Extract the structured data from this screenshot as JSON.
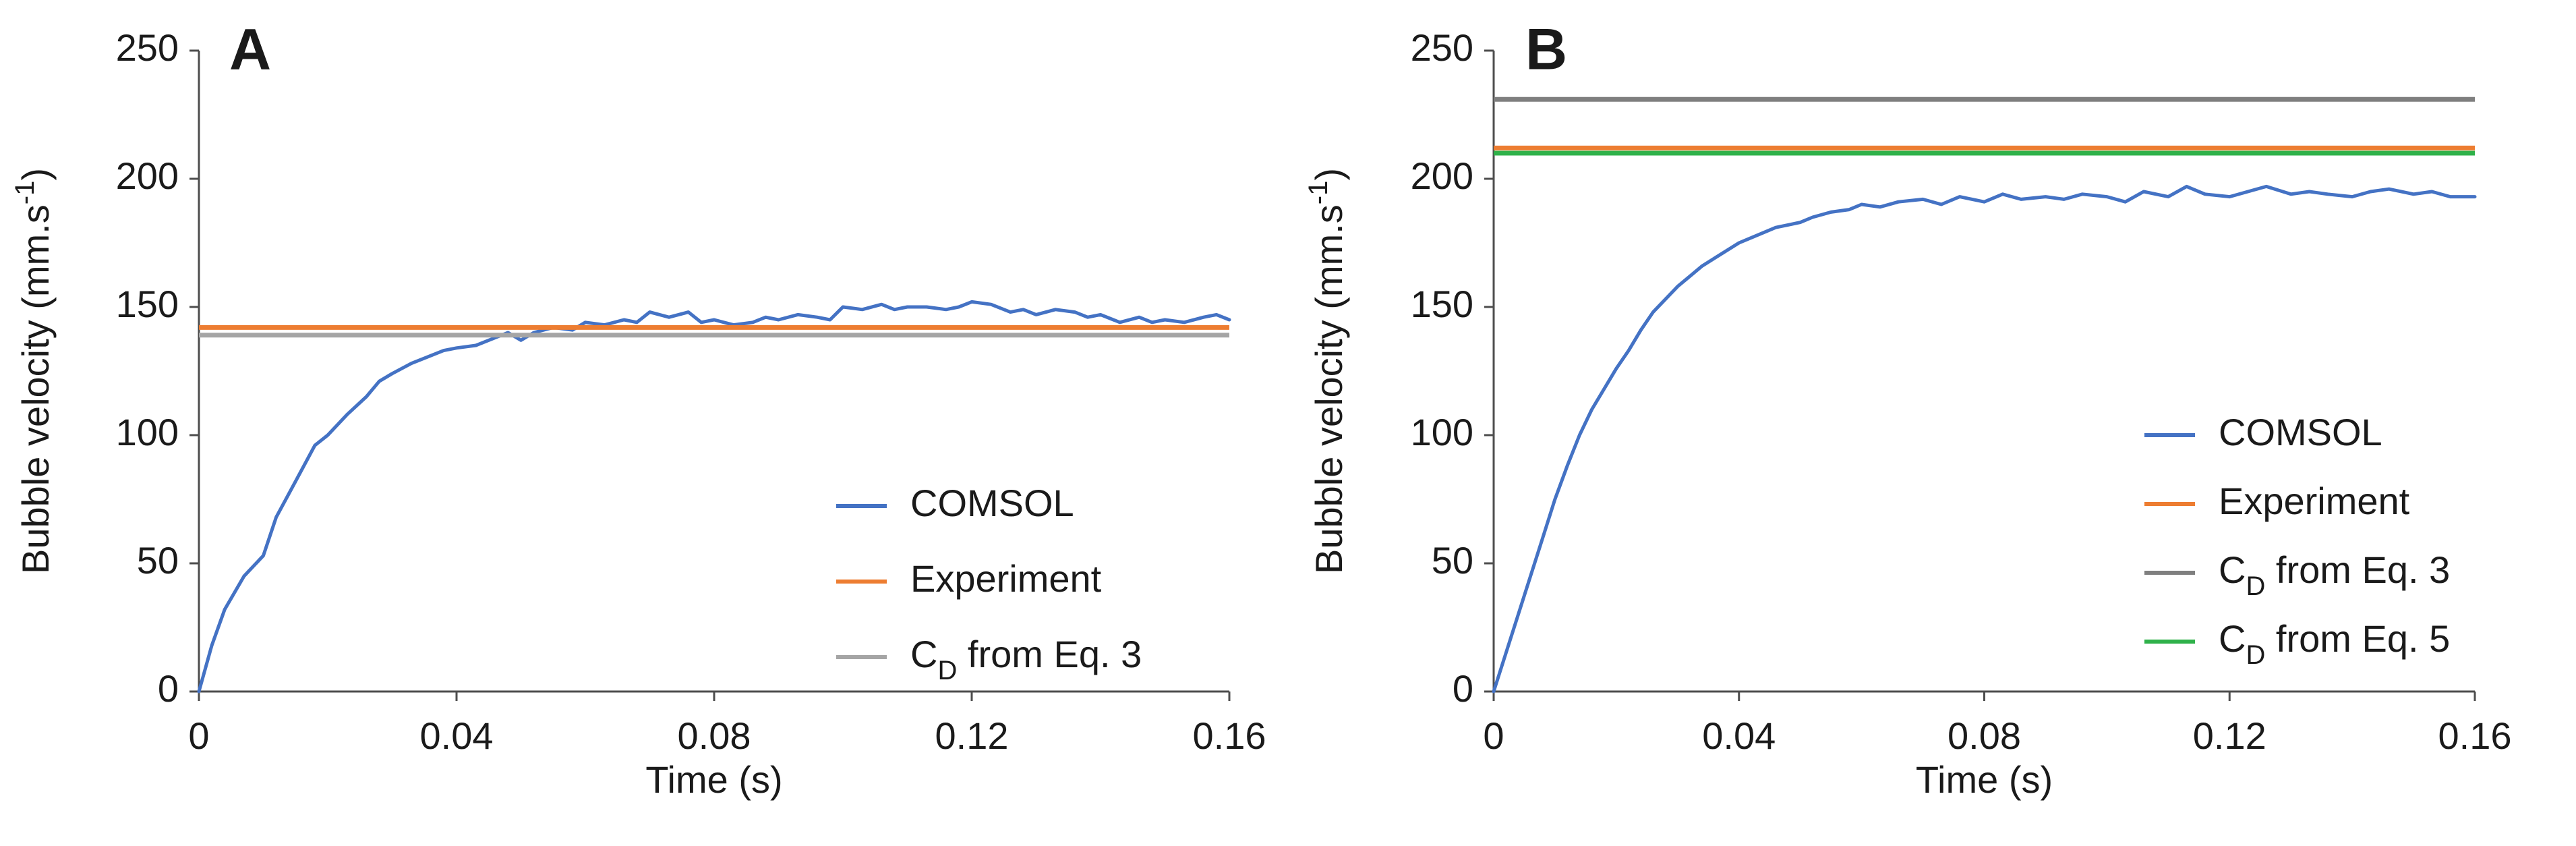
{
  "chart_data": [
    {
      "panel_label": "A",
      "type": "line",
      "xlabel": "Time (s)",
      "ylabel": "Bubble velocity (mm.s",
      "ylabel_sup": "-1",
      "ylabel_close": ")",
      "xlim": [
        0,
        0.16
      ],
      "ylim": [
        0,
        250
      ],
      "x_ticks": [
        0,
        0.04,
        0.08,
        0.12,
        0.16
      ],
      "x_tick_labels": [
        "0",
        "0.04",
        "0.08",
        "0.12",
        "0.16"
      ],
      "y_ticks": [
        0,
        50,
        100,
        150,
        200,
        250
      ],
      "y_tick_labels": [
        "0",
        "50",
        "100",
        "150",
        "200",
        "250"
      ],
      "legend_position": "bottom-right",
      "series": [
        {
          "name": "COMSOL",
          "color": "#4472C4",
          "kind": "curve",
          "x": [
            0,
            0.002,
            0.004,
            0.007,
            0.01,
            0.012,
            0.015,
            0.018,
            0.02,
            0.023,
            0.026,
            0.028,
            0.03,
            0.033,
            0.036,
            0.038,
            0.04,
            0.043,
            0.046,
            0.048,
            0.05,
            0.052,
            0.055,
            0.058,
            0.06,
            0.063,
            0.066,
            0.068,
            0.07,
            0.073,
            0.076,
            0.078,
            0.08,
            0.083,
            0.086,
            0.088,
            0.09,
            0.093,
            0.096,
            0.098,
            0.1,
            0.103,
            0.106,
            0.108,
            0.11,
            0.113,
            0.116,
            0.118,
            0.12,
            0.123,
            0.126,
            0.128,
            0.13,
            0.133,
            0.136,
            0.138,
            0.14,
            0.143,
            0.146,
            0.148,
            0.15,
            0.153,
            0.156,
            0.158,
            0.16
          ],
          "y": [
            0,
            18,
            32,
            45,
            53,
            68,
            82,
            96,
            100,
            108,
            115,
            121,
            124,
            128,
            131,
            133,
            134,
            135,
            138,
            140,
            137,
            140,
            142,
            141,
            144,
            143,
            145,
            144,
            148,
            146,
            148,
            144,
            145,
            143,
            144,
            146,
            145,
            147,
            146,
            145,
            150,
            149,
            151,
            149,
            150,
            150,
            149,
            150,
            152,
            151,
            148,
            149,
            147,
            149,
            148,
            146,
            147,
            144,
            146,
            144,
            145,
            144,
            146,
            147,
            145
          ]
        },
        {
          "name": "Experiment",
          "color": "#ED7D31",
          "kind": "constant",
          "value": 142
        },
        {
          "name": "C",
          "name_sub": "D",
          "name_rest": " from Eq. 3",
          "color": "#A5A5A5",
          "kind": "constant",
          "value": 139
        }
      ]
    },
    {
      "panel_label": "B",
      "type": "line",
      "xlabel": "Time (s)",
      "ylabel": "Bubble velocity (mm.s",
      "ylabel_sup": "-1",
      "ylabel_close": ")",
      "xlim": [
        0,
        0.16
      ],
      "ylim": [
        0,
        250
      ],
      "x_ticks": [
        0,
        0.04,
        0.08,
        0.12,
        0.16
      ],
      "x_tick_labels": [
        "0",
        "0.04",
        "0.08",
        "0.12",
        "0.16"
      ],
      "y_ticks": [
        0,
        50,
        100,
        150,
        200,
        250
      ],
      "y_tick_labels": [
        "0",
        "50",
        "100",
        "150",
        "200",
        "250"
      ],
      "legend_position": "bottom-right",
      "series": [
        {
          "name": "COMSOL",
          "color": "#4472C4",
          "kind": "curve",
          "x": [
            0,
            0.002,
            0.004,
            0.006,
            0.008,
            0.01,
            0.012,
            0.014,
            0.016,
            0.018,
            0.02,
            0.022,
            0.024,
            0.026,
            0.028,
            0.03,
            0.032,
            0.034,
            0.036,
            0.038,
            0.04,
            0.042,
            0.044,
            0.046,
            0.048,
            0.05,
            0.052,
            0.055,
            0.058,
            0.06,
            0.063,
            0.066,
            0.07,
            0.073,
            0.076,
            0.08,
            0.083,
            0.086,
            0.09,
            0.093,
            0.096,
            0.1,
            0.103,
            0.106,
            0.11,
            0.113,
            0.116,
            0.12,
            0.123,
            0.126,
            0.13,
            0.133,
            0.136,
            0.14,
            0.143,
            0.146,
            0.15,
            0.153,
            0.156,
            0.16
          ],
          "y": [
            0,
            15,
            30,
            45,
            60,
            75,
            88,
            100,
            110,
            118,
            126,
            133,
            141,
            148,
            153,
            158,
            162,
            166,
            169,
            172,
            175,
            177,
            179,
            181,
            182,
            183,
            185,
            187,
            188,
            190,
            189,
            191,
            192,
            190,
            193,
            191,
            194,
            192,
            193,
            192,
            194,
            193,
            191,
            195,
            193,
            197,
            194,
            193,
            195,
            197,
            194,
            195,
            194,
            193,
            195,
            196,
            194,
            195,
            193,
            193
          ]
        },
        {
          "name": "Experiment",
          "color": "#ED7D31",
          "kind": "constant",
          "value": 212
        },
        {
          "name": "C",
          "name_sub": "D",
          "name_rest": " from Eq. 3",
          "color": "#7F7F7F",
          "kind": "constant",
          "value": 231
        },
        {
          "name": "C",
          "name_sub": "D",
          "name_rest": " from Eq. 5",
          "color": "#2FB14A",
          "kind": "constant",
          "value": 210
        }
      ]
    }
  ]
}
